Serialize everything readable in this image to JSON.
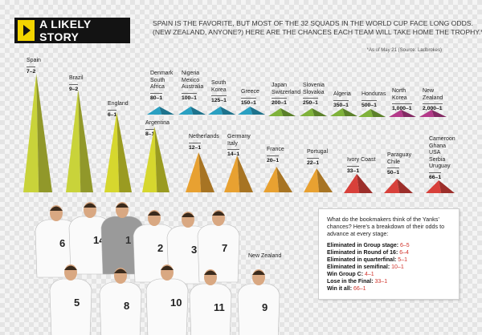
{
  "header": {
    "title": "A LIKELY STORY",
    "icon": "play-icon",
    "accent": "#f2d400"
  },
  "intro": {
    "line1": "SPAIN IS THE FAVORITE, BUT MOST OF THE 32 SQUADS IN THE WORLD CUP FACE LONG ODDS.",
    "line2": "(NEW ZEALAND, ANYONE?) HERE ARE THE CHANCES EACH TEAM WILL TAKE HOME THE TROPHY.*"
  },
  "footnote": "*As of May 21  (Source: Ladbrokes)",
  "odds": [
    {
      "teams": [
        "Spain"
      ],
      "odds": "7–2",
      "odds_value": 3.5,
      "color": "#c9d33a"
    },
    {
      "teams": [
        "Brazil"
      ],
      "odds": "9–2",
      "odds_value": 4.5,
      "color": "#c9d33a"
    },
    {
      "teams": [
        "England"
      ],
      "odds": "6–1",
      "odds_value": 6,
      "color": "#d6d72e"
    },
    {
      "teams": [
        "Denmark",
        "South",
        "Africa"
      ],
      "odds": "80–1",
      "odds_value": 80,
      "color": "#2aa0c2"
    },
    {
      "teams": [
        "Nigeria",
        "Mexico",
        "Australia"
      ],
      "odds": "100–1",
      "odds_value": 100,
      "color": "#2aa0c2"
    },
    {
      "teams": [
        "South",
        "Korea"
      ],
      "odds": "125–1",
      "odds_value": 125,
      "color": "#2aa0c2"
    },
    {
      "teams": [
        "Greece"
      ],
      "odds": "150–1",
      "odds_value": 150,
      "color": "#2aa0c2"
    },
    {
      "teams": [
        "Japan",
        "Switzerland"
      ],
      "odds": "200–1",
      "odds_value": 200,
      "color": "#7fb23a"
    },
    {
      "teams": [
        "Slovenia",
        "Slovakia"
      ],
      "odds": "250–1",
      "odds_value": 250,
      "color": "#7fb23a"
    },
    {
      "teams": [
        "Algeria"
      ],
      "odds": "350–1",
      "odds_value": 350,
      "color": "#7fb23a"
    },
    {
      "teams": [
        "Honduras"
      ],
      "odds": "500–1",
      "odds_value": 500,
      "color": "#7fb23a"
    },
    {
      "teams": [
        "North",
        "Korea"
      ],
      "odds": "1,000–1",
      "odds_value": 1000,
      "color": "#b43a8a"
    },
    {
      "teams": [
        "New",
        "Zealand"
      ],
      "odds": "2,000–1",
      "odds_value": 2000,
      "color": "#b43a8a"
    },
    {
      "teams": [
        "Argentina"
      ],
      "odds": "8–1",
      "odds_value": 8,
      "color": "#d6d72e"
    },
    {
      "teams": [
        "Netherlands"
      ],
      "odds": "12–1",
      "odds_value": 12,
      "color": "#e8a131"
    },
    {
      "teams": [
        "Germany",
        "Italy"
      ],
      "odds": "14–1",
      "odds_value": 14,
      "color": "#e8a131"
    },
    {
      "teams": [
        "France"
      ],
      "odds": "20–1",
      "odds_value": 20,
      "color": "#e8a131"
    },
    {
      "teams": [
        "Portugal"
      ],
      "odds": "22–1",
      "odds_value": 22,
      "color": "#e8a131"
    },
    {
      "teams": [
        "Ivory Coast"
      ],
      "odds": "33–1",
      "odds_value": 33,
      "color": "#d8403a"
    },
    {
      "teams": [
        "Paraguay",
        "Chile"
      ],
      "odds": "50–1",
      "odds_value": 50,
      "color": "#d8403a"
    },
    {
      "teams": [
        "Cameroon",
        "Ghana",
        "USA",
        "Serbia",
        "Uruguay"
      ],
      "odds": "66–1",
      "odds_value": 66,
      "color": "#d8403a"
    }
  ],
  "photo": {
    "caption": "New Zealand",
    "jersey_numbers": [
      "6",
      "14",
      "1",
      "2",
      "3",
      "7",
      "5",
      "8",
      "10",
      "11",
      "9"
    ]
  },
  "yanks": {
    "question": "What do the bookmakers think of the Yanks’ chances? Here’s a breakdown of their odds to advance at every stage:",
    "rows": [
      {
        "label": "Eliminated in Group stage:",
        "value": "6–5"
      },
      {
        "label": "Eliminated in Round of 16:",
        "value": "6–4"
      },
      {
        "label": "Eliminated in quarterfinal:",
        "value": "5–1"
      },
      {
        "label": "Eliminated in semifinal:",
        "value": "10–1"
      },
      {
        "label": "Win Group C:",
        "value": "4–1"
      },
      {
        "label": "Lose in the Final:",
        "value": "33–1"
      },
      {
        "label": "Win it all:",
        "value": "66–1"
      }
    ]
  }
}
